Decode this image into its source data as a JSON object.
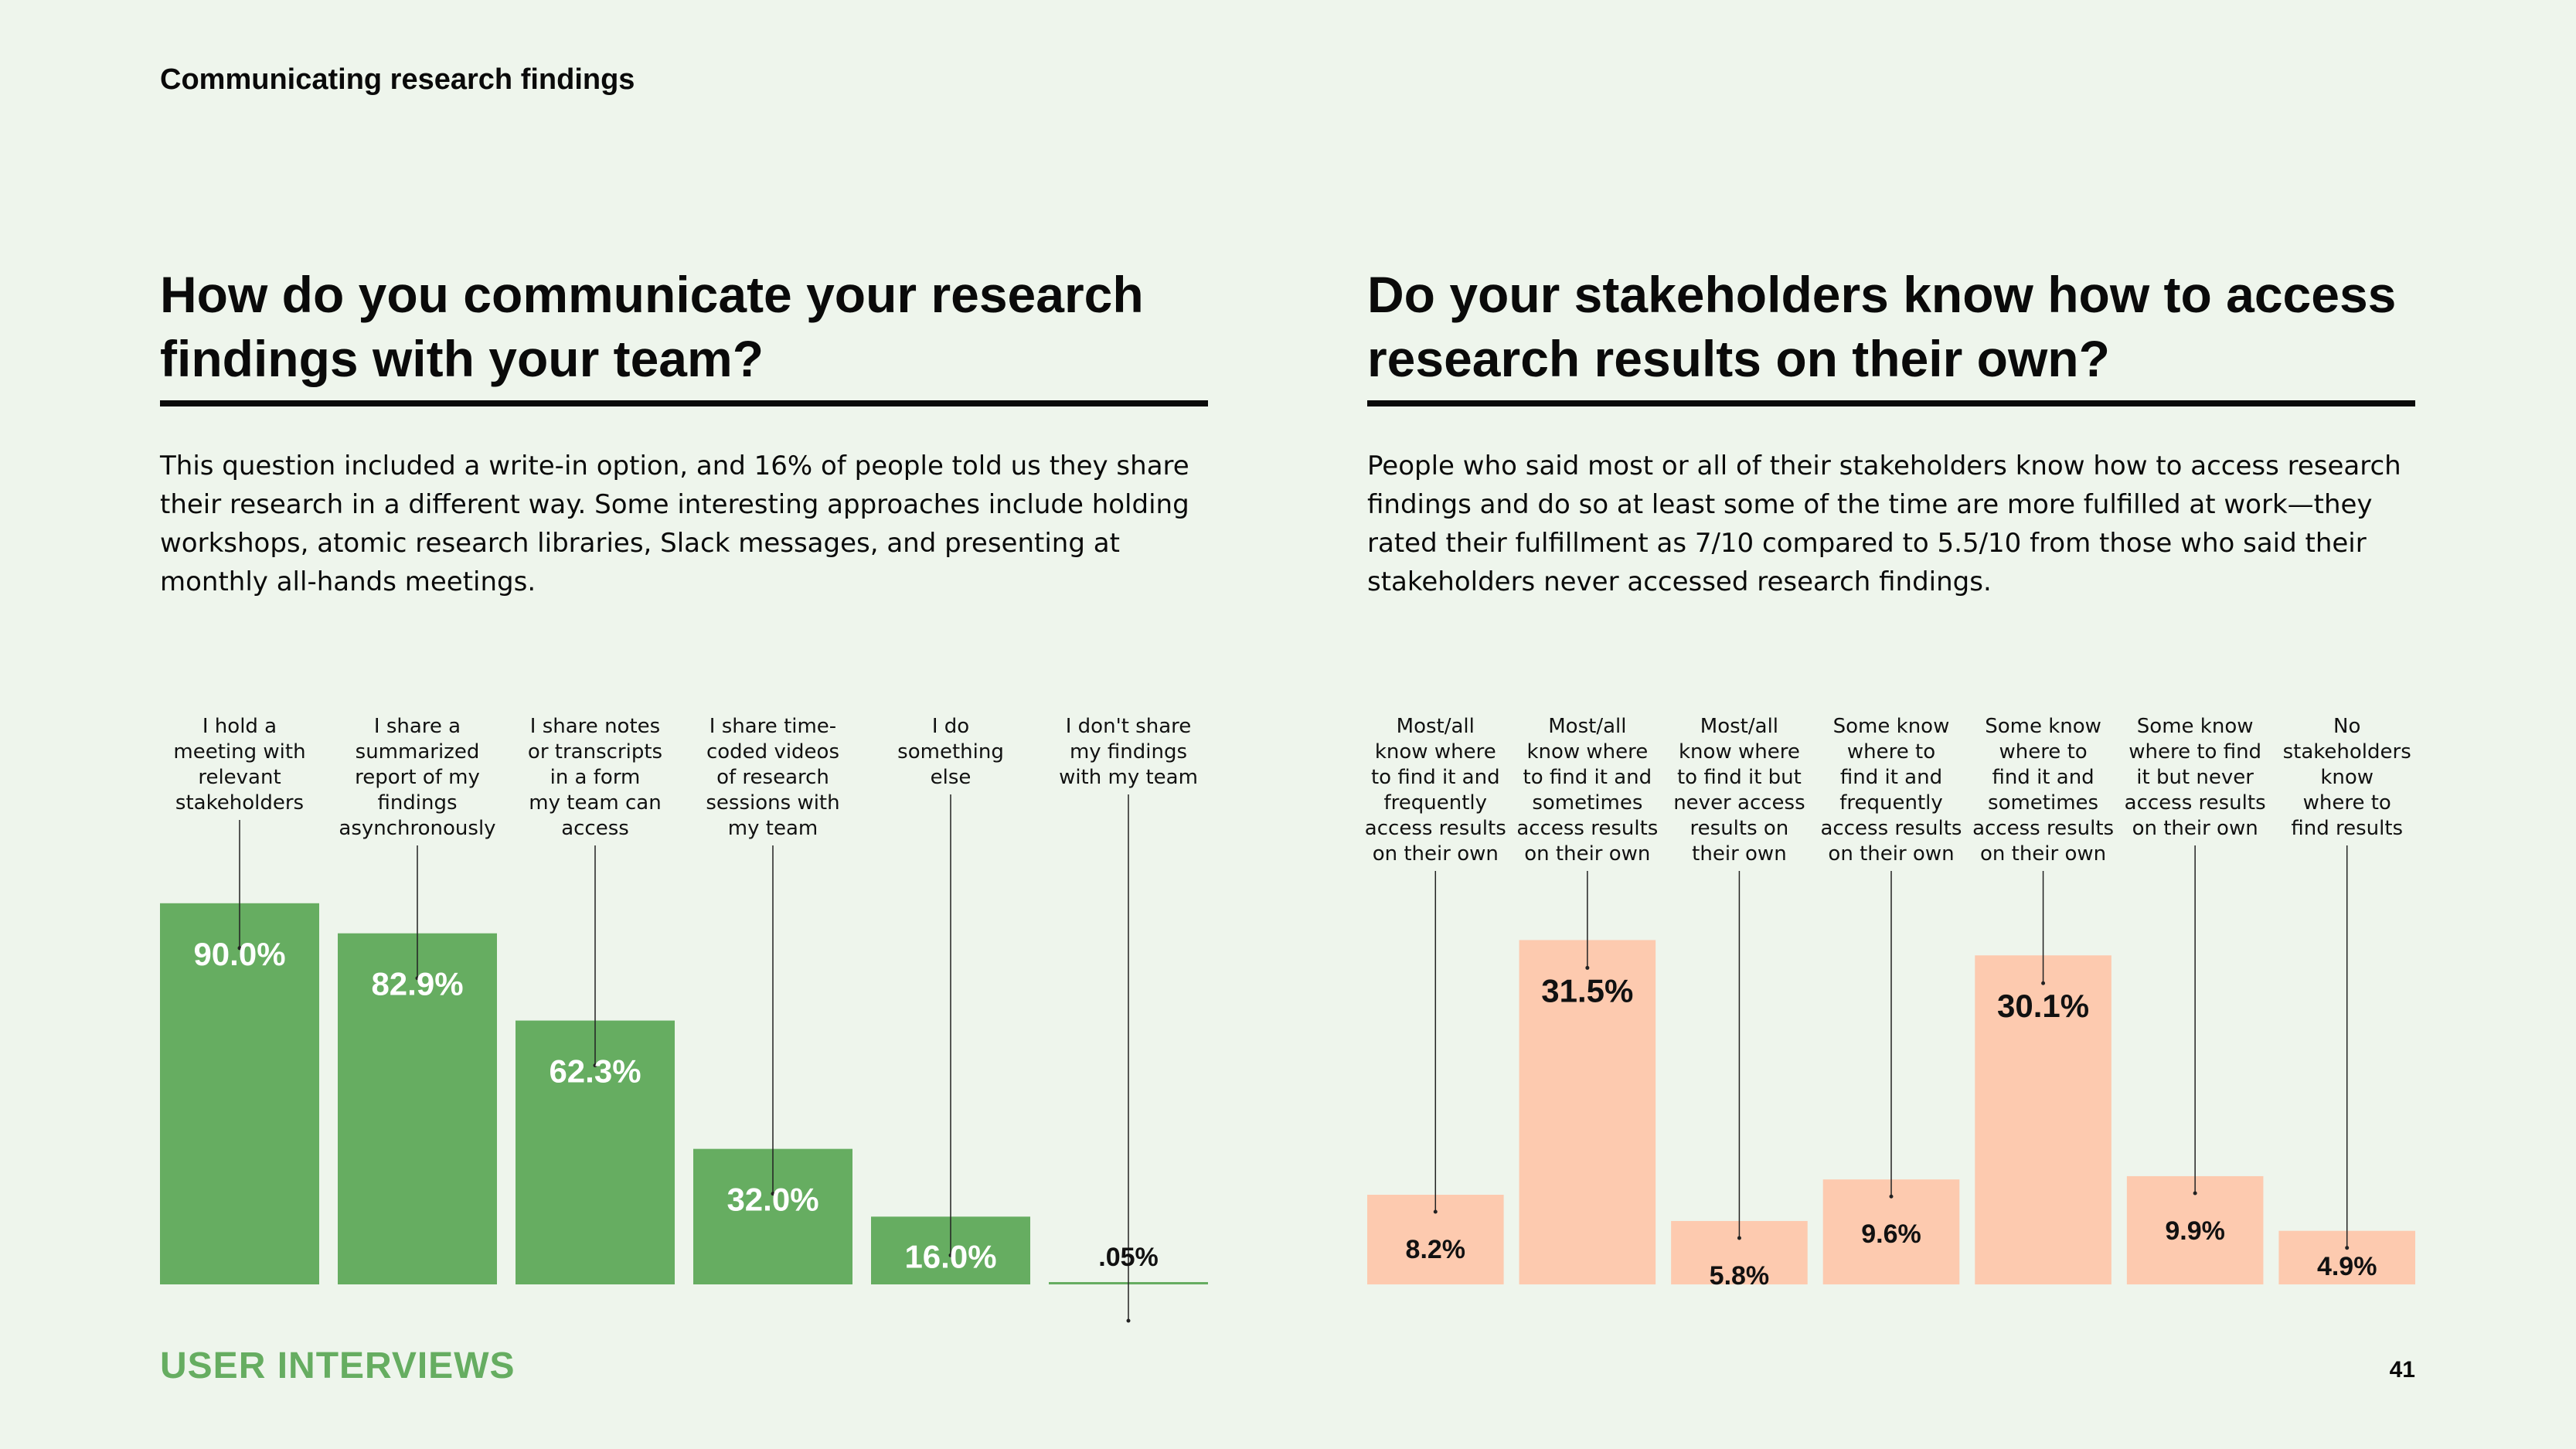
{
  "section_label": "Communicating research findings",
  "left": {
    "heading": "How do you communicate your research findings with your team?",
    "paragraph": "This question included a write-in option, and 16% of people told us they share their research in a different way. Some interesting approaches include holding workshops, atomic research libraries, Slack messages, and presenting at monthly all-hands meetings."
  },
  "right": {
    "heading": "Do your stakeholders know how to access research results on their own?",
    "paragraph": "People who said most or all of their stakeholders know how to access research findings and do so at least some of the time are more fulfilled at work—they rated their fulfillment as 7/10 compared to 5.5/10 from those who said their stakeholders never accessed research findings."
  },
  "footer": {
    "brand": "USER INTERVIEWS",
    "page_number": "41"
  },
  "colors": {
    "green": "#66ad61",
    "peach": "#fdcaaf",
    "background": "#eef5ec"
  },
  "chart_data": [
    {
      "type": "bar",
      "color": "#66ad61",
      "categories": [
        "I hold a meeting with relevant stakeholders",
        "I share a summarized report of my findings asynchronously",
        "I share notes or transcripts in a form my team can access",
        "I share time-coded videos of research sessions with my team",
        "I do something else",
        "I don't share my findings with my team"
      ],
      "category_lines": [
        [
          "I hold a",
          "meeting with",
          "relevant",
          "stakeholders"
        ],
        [
          "I share a",
          "summarized",
          "report of my",
          "findings",
          "asynchronously"
        ],
        [
          "I share notes",
          "or transcripts",
          "in a form",
          "my team can",
          "access"
        ],
        [
          "I share time-",
          "coded videos",
          "of research",
          "sessions with",
          "my team"
        ],
        [
          "I do",
          "something",
          "else"
        ],
        [
          "I don't share",
          "my findings",
          "with my team"
        ]
      ],
      "values": [
        90.0,
        82.9,
        62.3,
        32.0,
        16.0,
        0.05
      ],
      "labels": [
        "90.0%",
        "82.9%",
        "62.3%",
        "32.0%",
        "16.0%",
        ".05%"
      ],
      "ylim": [
        0,
        100
      ]
    },
    {
      "type": "bar",
      "color": "#fdcaaf",
      "categories": [
        "Most/all know where to find it and frequently access results on their own",
        "Most/all know where to find it and sometimes access results on their own",
        "Most/all know where to find it but never access results on their own",
        "Some know where to find it and frequently access results on their own",
        "Some know where to find it and sometimes access results on their own",
        "Some know where to find it but never access results on their own",
        "No stakeholders know where to find results"
      ],
      "category_lines": [
        [
          "Most/all",
          "know where",
          "to find it and",
          "frequently",
          "access results",
          "on their own"
        ],
        [
          "Most/all",
          "know where",
          "to find it and",
          "sometimes",
          "access results",
          "on their own"
        ],
        [
          "Most/all",
          "know where",
          "to find it but",
          "never access",
          "results on",
          "their own"
        ],
        [
          "Some know",
          "where to",
          "find it and",
          "frequently",
          "access results",
          "on their own"
        ],
        [
          "Some know",
          "where to",
          "find it and",
          "sometimes",
          "access results",
          "on their own"
        ],
        [
          "Some know",
          "where to find",
          "it but never",
          "access results",
          "on their own"
        ],
        [
          "No",
          "stakeholders",
          "know",
          "where to",
          "find results"
        ]
      ],
      "values": [
        8.2,
        31.5,
        5.8,
        9.6,
        30.1,
        9.9,
        4.9
      ],
      "labels": [
        "8.2%",
        "31.5%",
        "5.8%",
        "9.6%",
        "30.1%",
        "9.9%",
        "4.9%"
      ],
      "ylim": [
        0,
        34.5
      ]
    }
  ]
}
